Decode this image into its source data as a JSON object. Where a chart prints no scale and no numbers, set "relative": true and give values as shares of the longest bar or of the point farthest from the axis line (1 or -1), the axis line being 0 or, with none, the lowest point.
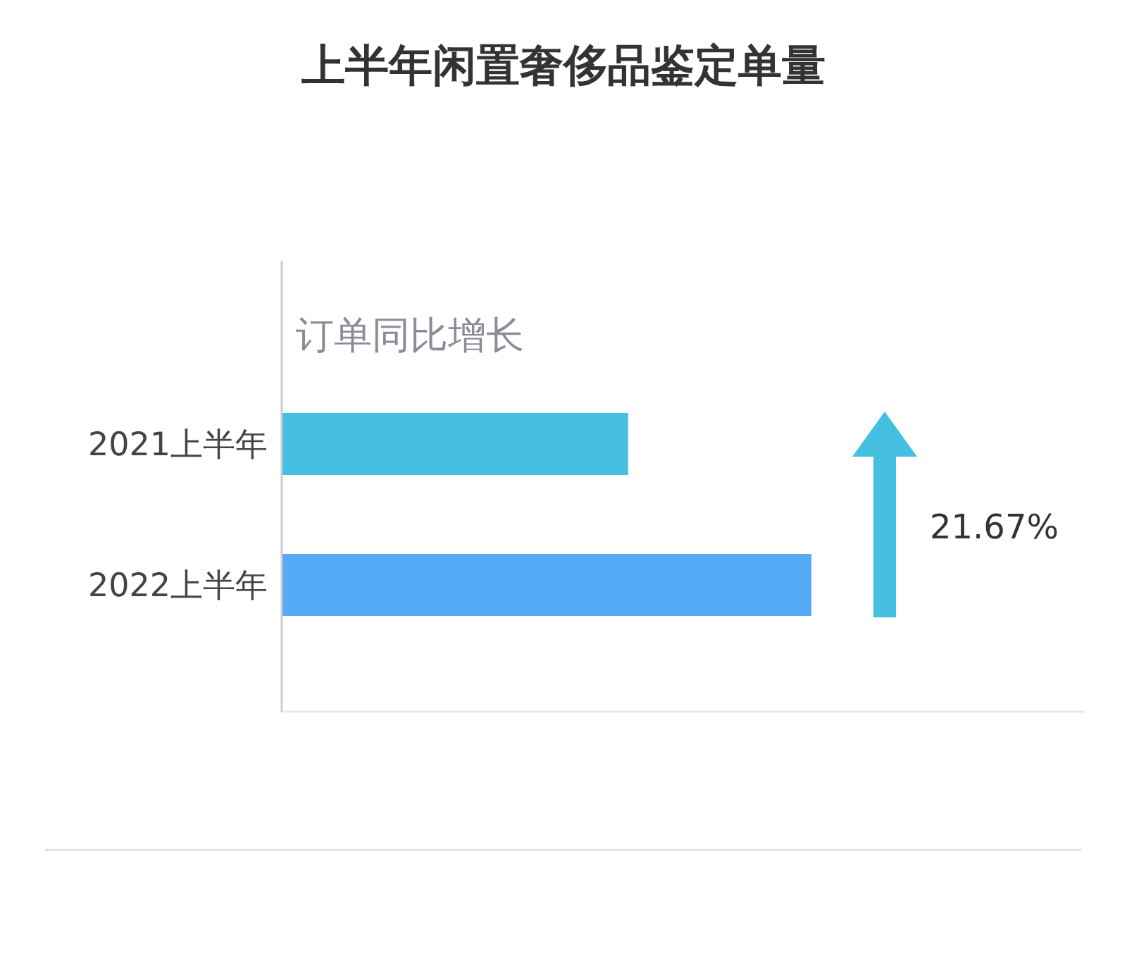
{
  "chart_data": {
    "type": "bar",
    "title": "上半年闲置奢侈品鉴定单量",
    "orientation": "horizontal",
    "relative": true,
    "categories": [
      "2021上半年",
      "2022上半年"
    ],
    "values": [
      0.654,
      1
    ],
    "colors": [
      "#44bfdf",
      "#55abf5"
    ],
    "annotations": [
      "订单同比增长",
      "21.67%"
    ]
  }
}
